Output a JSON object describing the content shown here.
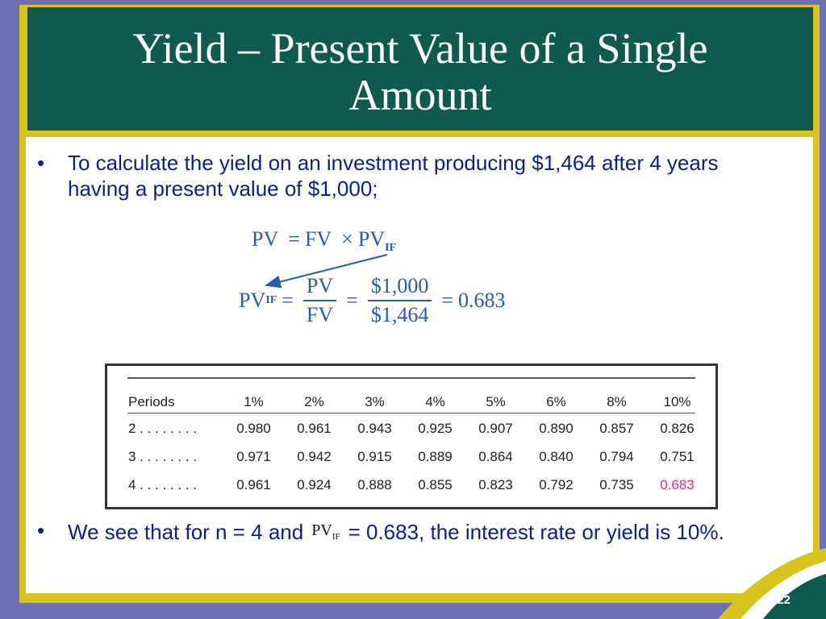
{
  "slide": {
    "title": "Yield – Present Value of a Single Amount",
    "bullet1": "To calculate the yield on an investment producing $1,464 after 4 years having a present value of $1,000;",
    "bullet2_before": "We see that for n = 4 and",
    "bullet2_after": "= 0.683, the interest rate or yield is 10%.",
    "bullet_symbol": "•",
    "page_number": "9-22"
  },
  "formula": {
    "line1_lhs": "PV",
    "line1_eq": "=",
    "line1_fv": "FV",
    "line1_times": "×",
    "line1_pv": "PV",
    "line1_sub": "IF",
    "line2_lhs": "PV",
    "line2_sub": "IF",
    "eq1": "=",
    "frac1_num": "PV",
    "frac1_den": "FV",
    "eq2": "=",
    "frac2_num": "$1,000",
    "frac2_den": "$1,464",
    "eq3": "=",
    "result": "0.683",
    "inline_pv": "PV",
    "inline_sub": "IF"
  },
  "table": {
    "headers": [
      "Periods",
      "1%",
      "2%",
      "3%",
      "4%",
      "5%",
      "6%",
      "8%",
      "10%"
    ],
    "rows": [
      {
        "period": "2 . . . . . . . .",
        "values": [
          "0.980",
          "0.961",
          "0.943",
          "0.925",
          "0.907",
          "0.890",
          "0.857",
          "0.826"
        ]
      },
      {
        "period": "3 . . . . . . . .",
        "values": [
          "0.971",
          "0.942",
          "0.915",
          "0.889",
          "0.864",
          "0.840",
          "0.794",
          "0.751"
        ]
      },
      {
        "period": "4 . . . . . . . .",
        "values": [
          "0.961",
          "0.924",
          "0.888",
          "0.855",
          "0.823",
          "0.792",
          "0.735",
          "0.683"
        ]
      }
    ],
    "highlight_color": "#e0308a"
  },
  "colors": {
    "background": "#6f6fb5",
    "frame": "#d9c21a",
    "title_bar": "#0e5a50",
    "bullet_text": "#0b1f8a",
    "formula": "#2a5caa"
  }
}
